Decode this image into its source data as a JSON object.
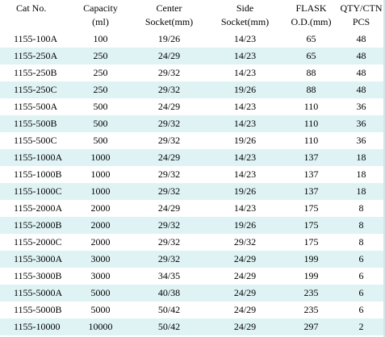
{
  "table": {
    "headers": [
      {
        "line1": "Cat No.",
        "line2": ""
      },
      {
        "line1": "Capacity",
        "line2": "(ml)"
      },
      {
        "line1": "Center",
        "line2": "Socket(mm)"
      },
      {
        "line1": "Side",
        "line2": "Socket(mm)"
      },
      {
        "line1": "FLASK",
        "line2": "O.D.(mm)"
      },
      {
        "line1": "QTY/CTN",
        "line2": "PCS"
      }
    ],
    "rows": [
      [
        "1155-100A",
        "100",
        "19/26",
        "14/23",
        "65",
        "48"
      ],
      [
        "1155-250A",
        "250",
        "24/29",
        "14/23",
        "65",
        "48"
      ],
      [
        "1155-250B",
        "250",
        "29/32",
        "14/23",
        "88",
        "48"
      ],
      [
        "1155-250C",
        "250",
        "29/32",
        "19/26",
        "88",
        "48"
      ],
      [
        "1155-500A",
        "500",
        "24/29",
        "14/23",
        "110",
        "36"
      ],
      [
        "1155-500B",
        "500",
        "29/32",
        "14/23",
        "110",
        "36"
      ],
      [
        "1155-500C",
        "500",
        "29/32",
        "19/26",
        "110",
        "36"
      ],
      [
        "1155-1000A",
        "1000",
        "24/29",
        "14/23",
        "137",
        "18"
      ],
      [
        "1155-1000B",
        "1000",
        "29/32",
        "14/23",
        "137",
        "18"
      ],
      [
        "1155-1000C",
        "1000",
        "29/32",
        "19/26",
        "137",
        "18"
      ],
      [
        "1155-2000A",
        "2000",
        "24/29",
        "14/23",
        "175",
        "8"
      ],
      [
        "1155-2000B",
        "2000",
        "29/32",
        "19/26",
        "175",
        "8"
      ],
      [
        "1155-2000C",
        "2000",
        "29/32",
        "29/32",
        "175",
        "8"
      ],
      [
        "1155-3000A",
        "3000",
        "29/32",
        "24/29",
        "199",
        "6"
      ],
      [
        "1155-3000B",
        "3000",
        "34/35",
        "24/29",
        "199",
        "6"
      ],
      [
        "1155-5000A",
        "5000",
        "40/38",
        "24/29",
        "235",
        "6"
      ],
      [
        "1155-5000B",
        "5000",
        "50/42",
        "24/29",
        "235",
        "6"
      ],
      [
        "1155-10000",
        "10000",
        "50/42",
        "24/29",
        "297",
        "2"
      ]
    ]
  },
  "colors": {
    "stripe": "#dff3f5",
    "base": "#ffffff",
    "text": "#000000"
  }
}
